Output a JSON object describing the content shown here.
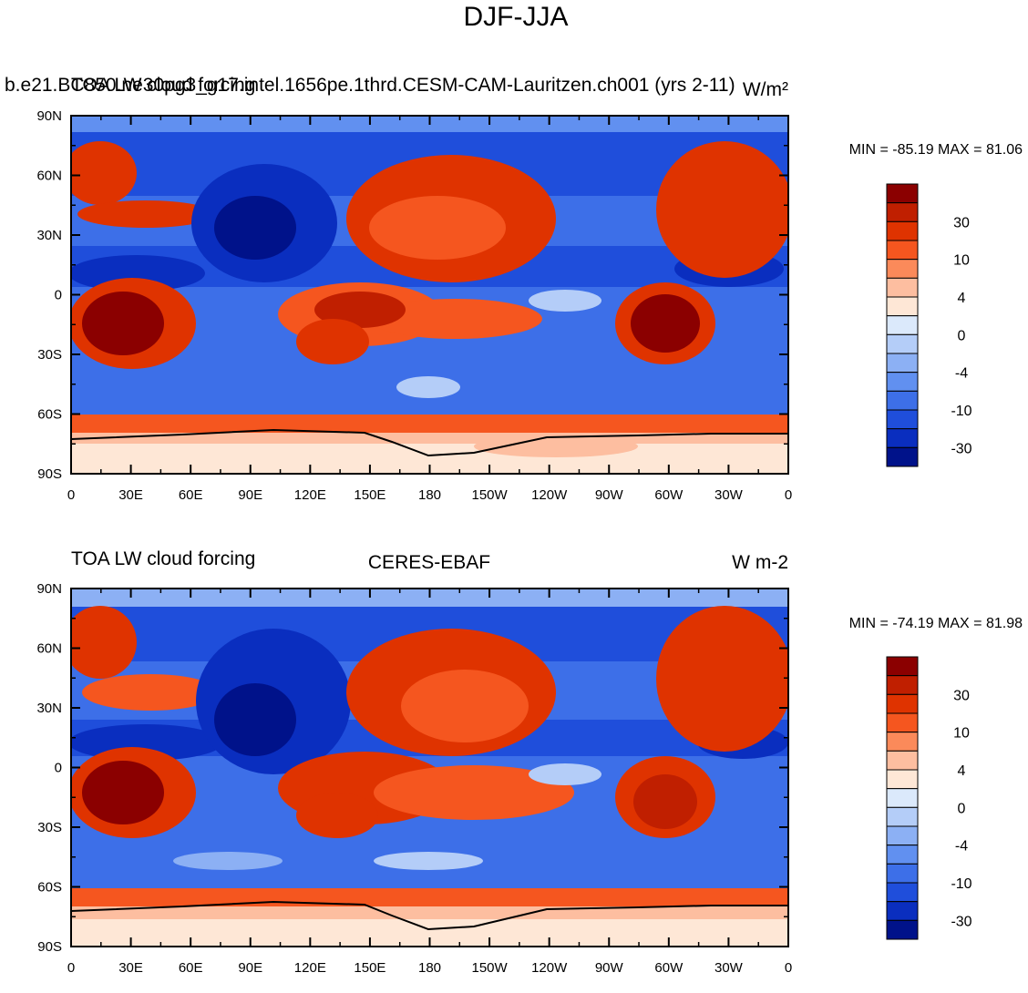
{
  "page_title": "DJF-JJA",
  "chart_data": [
    {
      "type": "heatmap",
      "left_title": "TOA LW cloud forcing",
      "center_title": "b.e21.BC850.ne30pg3_g17.intel.1656pe.1thrd.CESM-CAM-Lauritzen.ch001 (yrs 2-11)",
      "units": "W/m²",
      "min_max": "MIN = -85.19 MAX =  81.06",
      "x_tick_labels": [
        "0",
        "30E",
        "60E",
        "90E",
        "120E",
        "150E",
        "180",
        "150W",
        "120W",
        "90W",
        "60W",
        "30W",
        "0"
      ],
      "y_tick_labels": [
        "90N",
        "60N",
        "30N",
        "0",
        "30S",
        "60S",
        "90S"
      ]
    },
    {
      "type": "heatmap",
      "left_title": "TOA LW cloud forcing",
      "center_title": "CERES-EBAF",
      "units": "W m-2",
      "min_max": "MIN = -74.19 MAX =  81.98",
      "x_tick_labels": [
        "0",
        "30E",
        "60E",
        "90E",
        "120E",
        "150E",
        "180",
        "150W",
        "120W",
        "90W",
        "60W",
        "30W",
        "0"
      ],
      "y_tick_labels": [
        "90N",
        "60N",
        "30N",
        "0",
        "30S",
        "60S",
        "90S"
      ]
    }
  ],
  "colorbar": {
    "labels": [
      "30",
      "10",
      "4",
      "0",
      "-4",
      "-10",
      "-30"
    ],
    "colors": [
      "#8b0000",
      "#c01f00",
      "#df3300",
      "#f5561f",
      "#fb8a5a",
      "#fdbea0",
      "#fee7d6",
      "#dbe9fb",
      "#b4cdf8",
      "#8cb0f4",
      "#6190f0",
      "#3d6fe8",
      "#1f4edb",
      "#0a2ebf",
      "#00128a"
    ]
  }
}
